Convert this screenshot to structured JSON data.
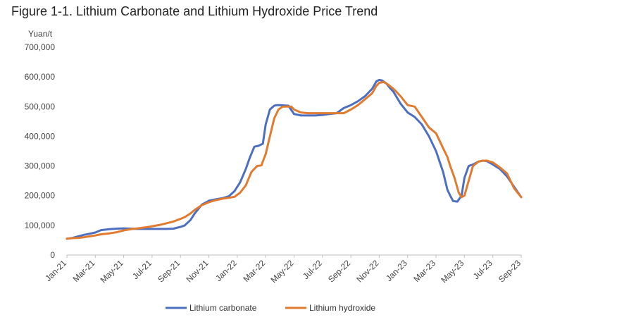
{
  "figure_title": "Figure 1-1. Lithium Carbonate and Lithium Hydroxide Price Trend",
  "chart_data": {
    "type": "line",
    "title": "Figure 1-1. Lithium Carbonate and Lithium Hydroxide Price Trend",
    "ylabel": "Yuan/t",
    "xlabel": "",
    "ylim": [
      0,
      700000
    ],
    "yticks": [
      0,
      100000,
      200000,
      300000,
      400000,
      500000,
      600000,
      700000
    ],
    "ytick_labels": [
      "0",
      "100,000",
      "200,000",
      "300,000",
      "400,000",
      "500,000",
      "600,000",
      "700,000"
    ],
    "xlim": [
      0,
      32
    ],
    "xticks": [
      0,
      2,
      4,
      6,
      8,
      10,
      12,
      14,
      16,
      18,
      20,
      22,
      24,
      26,
      28,
      30,
      32
    ],
    "xtick_labels": [
      "Jan-21",
      "Mar-21",
      "May-21",
      "Jul-21",
      "Sep-21",
      "Nov-21",
      "Jan-22",
      "Mar-22",
      "May-22",
      "Jul-22",
      "Sep-22",
      "Nov-22",
      "Jan-23",
      "Mar-23",
      "May-23",
      "Jul-23",
      "Sep-23"
    ],
    "grid": false,
    "legend_position": "bottom",
    "series": [
      {
        "name": "Lithium carbonate",
        "color": "#4E6FC0",
        "x": [
          0,
          0.4,
          0.8,
          1.2,
          1.6,
          2.0,
          2.4,
          3.0,
          3.5,
          4.0,
          4.5,
          5.0,
          5.5,
          6.0,
          6.5,
          7.0,
          7.5,
          8.0,
          8.3,
          8.7,
          9.0,
          9.5,
          10.0,
          10.5,
          11.0,
          11.4,
          11.8,
          12.2,
          12.6,
          12.9,
          13.2,
          13.5,
          13.8,
          14.0,
          14.3,
          14.6,
          14.8,
          15.0,
          15.3,
          15.6,
          16.0,
          16.5,
          17.0,
          17.5,
          18.0,
          18.5,
          19.0,
          19.5,
          20.0,
          20.5,
          21.0,
          21.5,
          21.8,
          22.0,
          22.2,
          22.5,
          22.8,
          23.0,
          23.5,
          24.0,
          24.5,
          25.0,
          25.5,
          26.0,
          26.5,
          26.8,
          27.0,
          27.2,
          27.5,
          27.8,
          28.0,
          28.3,
          28.6,
          29.0,
          29.3,
          29.6,
          30.0,
          30.5,
          31.0,
          31.5,
          32.0
        ],
        "values": [
          55000,
          58000,
          63000,
          68000,
          72000,
          76000,
          84000,
          87000,
          89000,
          90000,
          89000,
          88000,
          88000,
          88000,
          88000,
          88000,
          89000,
          95000,
          100000,
          118000,
          140000,
          170000,
          183000,
          188000,
          192000,
          198000,
          215000,
          245000,
          290000,
          330000,
          365000,
          368000,
          375000,
          440000,
          490000,
          503000,
          505000,
          505000,
          504000,
          503000,
          475000,
          470000,
          470000,
          470000,
          472000,
          475000,
          478000,
          495000,
          505000,
          518000,
          535000,
          560000,
          585000,
          590000,
          588000,
          578000,
          560000,
          550000,
          510000,
          480000,
          465000,
          440000,
          400000,
          350000,
          280000,
          220000,
          200000,
          182000,
          180000,
          200000,
          260000,
          300000,
          305000,
          315000,
          318000,
          316000,
          305000,
          290000,
          265000,
          230000,
          195000
        ]
      },
      {
        "name": "Lithium hydroxide",
        "color": "#E07B30",
        "x": [
          0,
          0.4,
          0.8,
          1.2,
          1.6,
          2.0,
          2.4,
          3.0,
          3.5,
          4.0,
          4.5,
          5.0,
          5.5,
          6.0,
          6.5,
          7.0,
          7.5,
          8.0,
          8.3,
          8.7,
          9.0,
          9.5,
          10.0,
          10.5,
          11.0,
          11.4,
          11.8,
          12.2,
          12.6,
          13.0,
          13.4,
          13.7,
          14.0,
          14.3,
          14.6,
          14.9,
          15.2,
          15.5,
          15.8,
          16.0,
          16.5,
          17.0,
          17.5,
          18.0,
          18.5,
          19.0,
          19.5,
          20.0,
          20.5,
          21.0,
          21.5,
          21.8,
          22.0,
          22.3,
          22.6,
          23.0,
          23.5,
          24.0,
          24.5,
          25.0,
          25.5,
          26.0,
          26.5,
          26.8,
          27.0,
          27.3,
          27.6,
          27.8,
          28.0,
          28.3,
          28.6,
          29.0,
          29.3,
          29.6,
          30.0,
          30.5,
          31.0,
          31.5,
          32.0
        ],
        "values": [
          55000,
          57000,
          58000,
          60000,
          63000,
          66000,
          70000,
          73000,
          77000,
          83000,
          87000,
          90000,
          93000,
          97000,
          101000,
          107000,
          113000,
          122000,
          128000,
          140000,
          152000,
          168000,
          178000,
          185000,
          190000,
          193000,
          196000,
          210000,
          235000,
          280000,
          300000,
          302000,
          340000,
          400000,
          460000,
          490000,
          500000,
          500000,
          500000,
          490000,
          480000,
          478000,
          478000,
          478000,
          478000,
          478000,
          478000,
          490000,
          505000,
          525000,
          545000,
          570000,
          580000,
          583000,
          575000,
          560000,
          535000,
          505000,
          500000,
          465000,
          430000,
          410000,
          360000,
          330000,
          300000,
          260000,
          210000,
          195000,
          200000,
          250000,
          300000,
          315000,
          318000,
          318000,
          312000,
          295000,
          275000,
          225000,
          195000
        ]
      }
    ]
  }
}
